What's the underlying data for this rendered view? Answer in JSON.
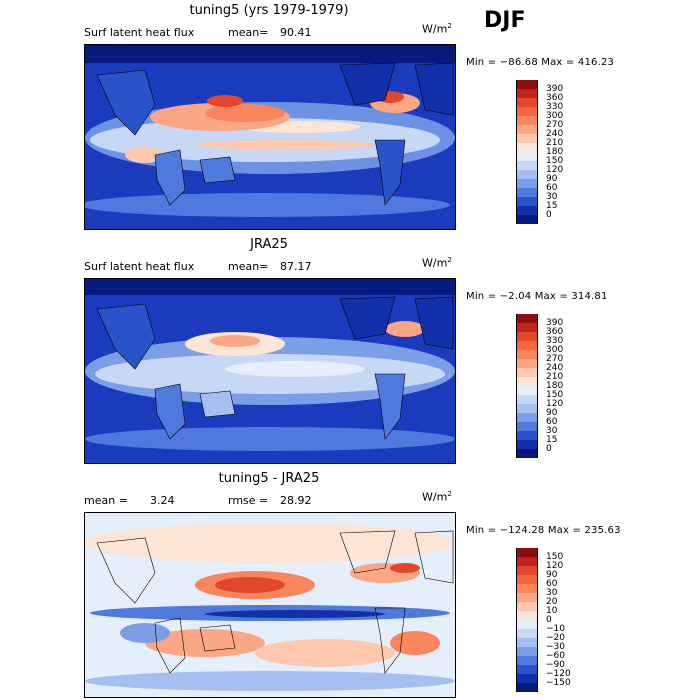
{
  "season": "DJF",
  "panels": [
    {
      "title": "tuning5 (yrs 1979-1979)",
      "left_label": "Surf latent heat flux",
      "mean_label": "mean=",
      "mean_value": "90.41",
      "units": "W/m",
      "units_exp": "2",
      "minmax": "Min = −86.68  Max = 416.23",
      "colorbar_labels": [
        "390",
        "360",
        "330",
        "300",
        "270",
        "240",
        "210",
        "180",
        "150",
        "120",
        "90",
        "60",
        "30",
        "15",
        "0"
      ],
      "colorbar_colors": [
        "#8b0d0d",
        "#c2231d",
        "#e4462b",
        "#f2683f",
        "#f8855c",
        "#fba684",
        "#fdc8ad",
        "#fde5d6",
        "#e5eefb",
        "#c6d8f5",
        "#a5bff0",
        "#7b9fe6",
        "#4f79dc",
        "#2a52c9",
        "#1330ab",
        "#061a7e"
      ]
    },
    {
      "title": "JRA25",
      "left_label": "Surf latent heat flux",
      "mean_label": "mean=",
      "mean_value": "87.17",
      "units": "W/m",
      "units_exp": "2",
      "minmax": "Min =  −2.04  Max = 314.81",
      "colorbar_labels": [
        "390",
        "360",
        "330",
        "300",
        "270",
        "240",
        "210",
        "180",
        "150",
        "120",
        "90",
        "60",
        "30",
        "15",
        "0"
      ],
      "colorbar_colors": [
        "#8b0d0d",
        "#c2231d",
        "#e4462b",
        "#f2683f",
        "#f8855c",
        "#fba684",
        "#fdc8ad",
        "#fde5d6",
        "#e5eefb",
        "#c6d8f5",
        "#a5bff0",
        "#7b9fe6",
        "#4f79dc",
        "#2a52c9",
        "#1330ab",
        "#061a7e"
      ]
    },
    {
      "title": "tuning5 - JRA25",
      "left_label": "mean =",
      "mean_label": "rmse =",
      "left_value": "3.24",
      "mean_value": "28.92",
      "units": "W/m",
      "units_exp": "2",
      "minmax": "Min = −124.28  Max = 235.63",
      "colorbar_labels": [
        "150",
        "120",
        "90",
        "60",
        "30",
        "20",
        "10",
        "0",
        "−10",
        "−20",
        "−30",
        "−60",
        "−90",
        "−120",
        "−150"
      ],
      "colorbar_colors": [
        "#8b0d0d",
        "#c2231d",
        "#e4462b",
        "#f2683f",
        "#f8855c",
        "#fba684",
        "#fdc8ad",
        "#fde5d6",
        "#e5eefb",
        "#c6d8f5",
        "#a5bff0",
        "#7b9fe6",
        "#4f79dc",
        "#2a52c9",
        "#1330ab",
        "#061a7e"
      ]
    }
  ]
}
